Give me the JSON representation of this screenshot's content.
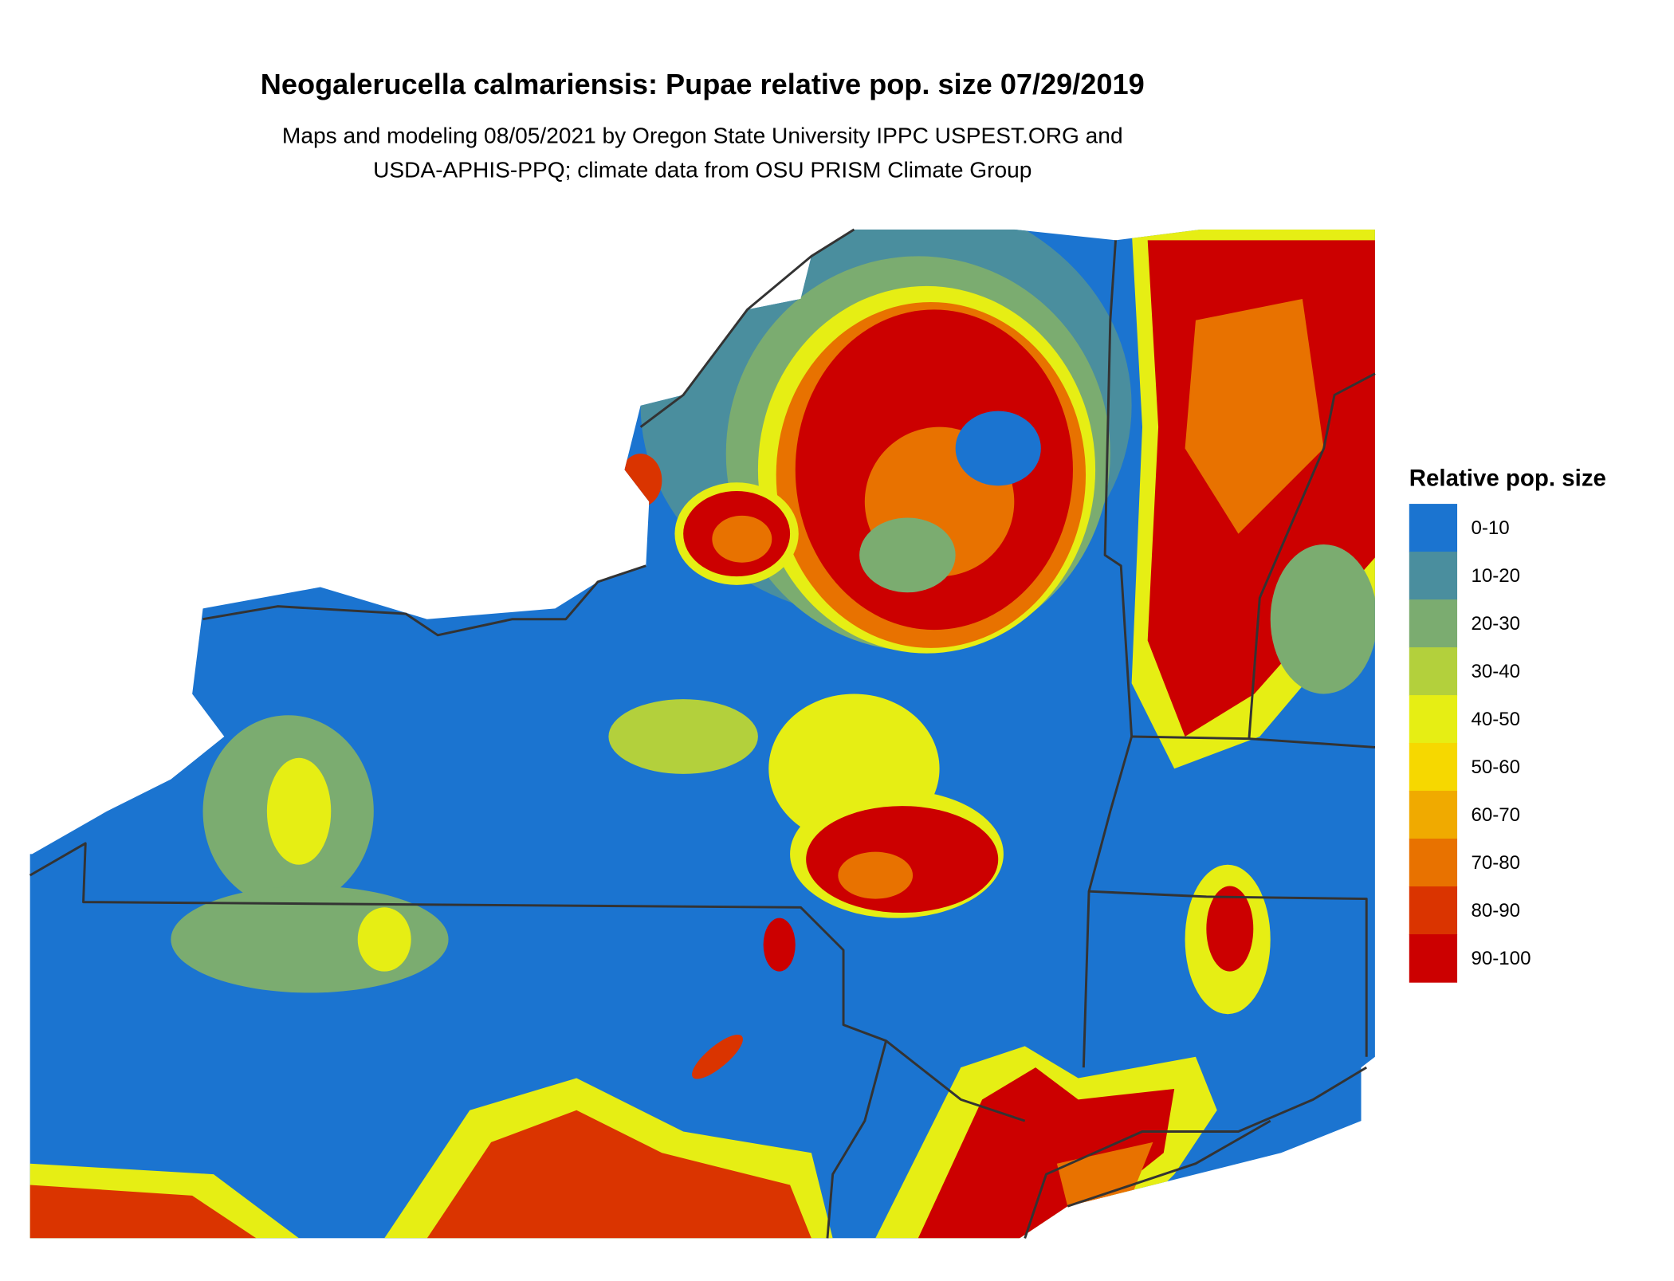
{
  "title": "Neogalerucella calmariensis: Pupae relative pop. size 07/29/2019",
  "subtitle_lines": [
    "Maps and modeling 08/05/2021 by Oregon State University IPPC USPEST.ORG and",
    "USDA-APHIS-PPQ; climate data from OSU PRISM Climate Group"
  ],
  "legend": {
    "title": "Relative pop. size",
    "items": [
      {
        "label": "0-10",
        "color": "#1b74d0"
      },
      {
        "label": "10-20",
        "color": "#4a8e9e"
      },
      {
        "label": "20-30",
        "color": "#7bac70"
      },
      {
        "label": "30-40",
        "color": "#b3d03c"
      },
      {
        "label": "40-50",
        "color": "#e6ee14"
      },
      {
        "label": "50-60",
        "color": "#f6d800"
      },
      {
        "label": "60-70",
        "color": "#f0aa00"
      },
      {
        "label": "70-80",
        "color": "#e87200"
      },
      {
        "label": "80-90",
        "color": "#da3400"
      },
      {
        "label": "90-100",
        "color": "#cc0000"
      }
    ]
  }
}
